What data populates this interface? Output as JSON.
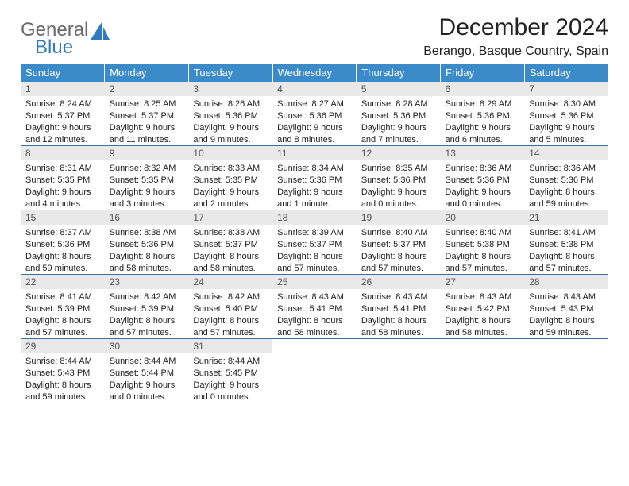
{
  "brand": {
    "line1": "General",
    "line2": "Blue"
  },
  "title": "December 2024",
  "location": "Berango, Basque Country, Spain",
  "colors": {
    "header_bg": "#3b8bc8",
    "header_text": "#ffffff",
    "daynum_bg": "#e9e9e9",
    "row_border": "#3b6fa0",
    "logo_gray": "#6a6a6a",
    "logo_blue": "#2f7bbf"
  },
  "weekdays": [
    "Sunday",
    "Monday",
    "Tuesday",
    "Wednesday",
    "Thursday",
    "Friday",
    "Saturday"
  ],
  "days": [
    {
      "n": 1,
      "sr": "8:24 AM",
      "ss": "5:37 PM",
      "dl": "9 hours and 12 minutes."
    },
    {
      "n": 2,
      "sr": "8:25 AM",
      "ss": "5:37 PM",
      "dl": "9 hours and 11 minutes."
    },
    {
      "n": 3,
      "sr": "8:26 AM",
      "ss": "5:36 PM",
      "dl": "9 hours and 9 minutes."
    },
    {
      "n": 4,
      "sr": "8:27 AM",
      "ss": "5:36 PM",
      "dl": "9 hours and 8 minutes."
    },
    {
      "n": 5,
      "sr": "8:28 AM",
      "ss": "5:36 PM",
      "dl": "9 hours and 7 minutes."
    },
    {
      "n": 6,
      "sr": "8:29 AM",
      "ss": "5:36 PM",
      "dl": "9 hours and 6 minutes."
    },
    {
      "n": 7,
      "sr": "8:30 AM",
      "ss": "5:36 PM",
      "dl": "9 hours and 5 minutes."
    },
    {
      "n": 8,
      "sr": "8:31 AM",
      "ss": "5:35 PM",
      "dl": "9 hours and 4 minutes."
    },
    {
      "n": 9,
      "sr": "8:32 AM",
      "ss": "5:35 PM",
      "dl": "9 hours and 3 minutes."
    },
    {
      "n": 10,
      "sr": "8:33 AM",
      "ss": "5:35 PM",
      "dl": "9 hours and 2 minutes."
    },
    {
      "n": 11,
      "sr": "8:34 AM",
      "ss": "5:36 PM",
      "dl": "9 hours and 1 minute."
    },
    {
      "n": 12,
      "sr": "8:35 AM",
      "ss": "5:36 PM",
      "dl": "9 hours and 0 minutes."
    },
    {
      "n": 13,
      "sr": "8:36 AM",
      "ss": "5:36 PM",
      "dl": "9 hours and 0 minutes."
    },
    {
      "n": 14,
      "sr": "8:36 AM",
      "ss": "5:36 PM",
      "dl": "8 hours and 59 minutes."
    },
    {
      "n": 15,
      "sr": "8:37 AM",
      "ss": "5:36 PM",
      "dl": "8 hours and 59 minutes."
    },
    {
      "n": 16,
      "sr": "8:38 AM",
      "ss": "5:36 PM",
      "dl": "8 hours and 58 minutes."
    },
    {
      "n": 17,
      "sr": "8:38 AM",
      "ss": "5:37 PM",
      "dl": "8 hours and 58 minutes."
    },
    {
      "n": 18,
      "sr": "8:39 AM",
      "ss": "5:37 PM",
      "dl": "8 hours and 57 minutes."
    },
    {
      "n": 19,
      "sr": "8:40 AM",
      "ss": "5:37 PM",
      "dl": "8 hours and 57 minutes."
    },
    {
      "n": 20,
      "sr": "8:40 AM",
      "ss": "5:38 PM",
      "dl": "8 hours and 57 minutes."
    },
    {
      "n": 21,
      "sr": "8:41 AM",
      "ss": "5:38 PM",
      "dl": "8 hours and 57 minutes."
    },
    {
      "n": 22,
      "sr": "8:41 AM",
      "ss": "5:39 PM",
      "dl": "8 hours and 57 minutes."
    },
    {
      "n": 23,
      "sr": "8:42 AM",
      "ss": "5:39 PM",
      "dl": "8 hours and 57 minutes."
    },
    {
      "n": 24,
      "sr": "8:42 AM",
      "ss": "5:40 PM",
      "dl": "8 hours and 57 minutes."
    },
    {
      "n": 25,
      "sr": "8:43 AM",
      "ss": "5:41 PM",
      "dl": "8 hours and 58 minutes."
    },
    {
      "n": 26,
      "sr": "8:43 AM",
      "ss": "5:41 PM",
      "dl": "8 hours and 58 minutes."
    },
    {
      "n": 27,
      "sr": "8:43 AM",
      "ss": "5:42 PM",
      "dl": "8 hours and 58 minutes."
    },
    {
      "n": 28,
      "sr": "8:43 AM",
      "ss": "5:43 PM",
      "dl": "8 hours and 59 minutes."
    },
    {
      "n": 29,
      "sr": "8:44 AM",
      "ss": "5:43 PM",
      "dl": "8 hours and 59 minutes."
    },
    {
      "n": 30,
      "sr": "8:44 AM",
      "ss": "5:44 PM",
      "dl": "9 hours and 0 minutes."
    },
    {
      "n": 31,
      "sr": "8:44 AM",
      "ss": "5:45 PM",
      "dl": "9 hours and 0 minutes."
    }
  ],
  "labels": {
    "sunrise": "Sunrise:",
    "sunset": "Sunset:",
    "daylight": "Daylight:"
  }
}
